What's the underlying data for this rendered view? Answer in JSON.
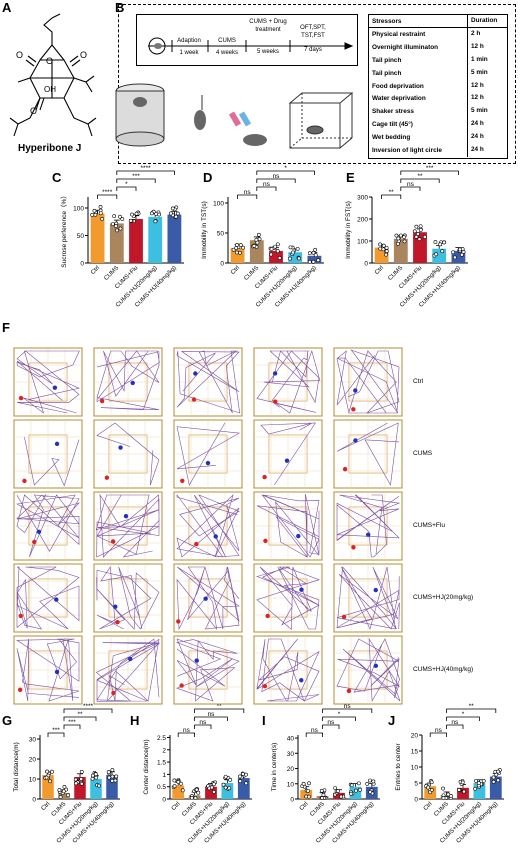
{
  "panel_labels": {
    "A": "A",
    "B": "B",
    "C": "C",
    "D": "D",
    "E": "E",
    "F": "F",
    "G": "G",
    "H": "H",
    "I": "I",
    "J": "J"
  },
  "compound_name": "Hyperibone J",
  "timeline": {
    "stages": [
      {
        "label": "Adaption",
        "duration": "1 week"
      },
      {
        "label": "CUMS",
        "duration": "4 weeks"
      },
      {
        "label": "CUMS + Drug treatment",
        "duration": "5 weeks"
      },
      {
        "label": "OFT,SPT, TST,FST",
        "duration": "7 days"
      }
    ]
  },
  "stressor_table": {
    "headers": [
      "Stressors",
      "Duration"
    ],
    "rows": [
      [
        "Physical restraint",
        "2 h"
      ],
      [
        "Overnight illuminaton",
        "12 h"
      ],
      [
        "Tail pinch",
        "1 min"
      ],
      [
        "Tail pinch",
        "5 min"
      ],
      [
        "Food deprivation",
        "12 h"
      ],
      [
        "Water deprivation",
        "12 h"
      ],
      [
        "Shaker stress",
        "5 min"
      ],
      [
        "Cage tilt (45°)",
        "24 h"
      ],
      [
        "Wet bedding",
        "24 h"
      ],
      [
        "Inversion of light circle",
        "24 h"
      ]
    ]
  },
  "groups": [
    "Ctrl",
    "CUMS",
    "CUMS+Flu",
    "CUMS+HJ(20mg/kg)",
    "CUMS+HJ(40mg/kg)"
  ],
  "colors": {
    "Ctrl": "#f39a2e",
    "CUMS": "#a9865d",
    "CUMS+Flu": "#c0182a",
    "CUMS+HJ(20mg/kg)": "#3cbfe0",
    "CUMS+HJ(40mg/kg)": "#3a5ca8"
  },
  "chart_data": [
    {
      "panel": "C",
      "type": "bar",
      "ylabel": "Sucrose perference（%）",
      "yticks": [
        0,
        50,
        100
      ],
      "ylim": [
        0,
        120
      ],
      "categories": [
        "Ctrl",
        "CUMS",
        "CUMS+Flu",
        "CUMS+HJ(20mg/kg)",
        "CUMS+HJ(40mg/kg)"
      ],
      "values": [
        90,
        72,
        80,
        84,
        88
      ],
      "brackets": [
        {
          "from": 0,
          "to": 1,
          "label": "****"
        },
        {
          "from": 1,
          "to": 2,
          "label": "*"
        },
        {
          "from": 1,
          "to": 3,
          "label": "***"
        },
        {
          "from": 1,
          "to": 4,
          "label": "****"
        }
      ]
    },
    {
      "panel": "D",
      "type": "bar",
      "ylabel": "Immobility in TST(s)",
      "yticks": [
        0,
        50,
        100
      ],
      "ylim": [
        0,
        110
      ],
      "categories": [
        "Ctrl",
        "CUMS",
        "CUMS+Flu",
        "CUMS+HJ(20mg/kg)",
        "CUMS+HJ(40mg/kg)"
      ],
      "values": [
        25,
        38,
        20,
        18,
        12
      ],
      "brackets": [
        {
          "from": 0,
          "to": 1,
          "label": "ns"
        },
        {
          "from": 1,
          "to": 2,
          "label": "ns"
        },
        {
          "from": 1,
          "to": 3,
          "label": "ns"
        },
        {
          "from": 1,
          "to": 4,
          "label": "*"
        }
      ]
    },
    {
      "panel": "E",
      "type": "bar",
      "ylabel": "Immobility in FST(s)",
      "yticks": [
        0,
        100,
        200,
        300
      ],
      "ylim": [
        0,
        300
      ],
      "categories": [
        "Ctrl",
        "CUMS",
        "CUMS+Flu",
        "CUMS+HJ(20mg/kg)",
        "CUMS+HJ(40mg/kg)"
      ],
      "values": [
        70,
        110,
        140,
        65,
        55
      ],
      "brackets": [
        {
          "from": 0,
          "to": 1,
          "label": "**"
        },
        {
          "from": 1,
          "to": 2,
          "label": "ns"
        },
        {
          "from": 1,
          "to": 3,
          "label": "**"
        },
        {
          "from": 1,
          "to": 4,
          "label": "***"
        }
      ]
    },
    {
      "panel": "G",
      "type": "bar",
      "ylabel": "Total distance(m)",
      "yticks": [
        0,
        10,
        20,
        30
      ],
      "ylim": [
        0,
        32
      ],
      "categories": [
        "Ctrl",
        "CUMS",
        "CUMS+Flu",
        "CUMS+HJ(20mg/kg)",
        "CUMS+HJ(40mg/kg)"
      ],
      "values": [
        12,
        3,
        11,
        10,
        12
      ],
      "brackets": [
        {
          "from": 0,
          "to": 1,
          "label": "***"
        },
        {
          "from": 1,
          "to": 2,
          "label": "***"
        },
        {
          "from": 1,
          "to": 3,
          "label": "**"
        },
        {
          "from": 1,
          "to": 4,
          "label": "****"
        }
      ]
    },
    {
      "panel": "H",
      "type": "bar",
      "ylabel": "Center distance(m)",
      "yticks": [
        0.0,
        0.5,
        1.0,
        1.5,
        2.0,
        2.5
      ],
      "ylim": [
        0,
        2.6
      ],
      "categories": [
        "Ctrl",
        "CUMS",
        "CUMS+Flu",
        "CUMS+HJ(20mg/kg)",
        "CUMS+HJ(40mg/kg)"
      ],
      "values": [
        0.55,
        0.15,
        0.5,
        0.65,
        0.85
      ],
      "brackets": [
        {
          "from": 0,
          "to": 1,
          "label": "ns"
        },
        {
          "from": 1,
          "to": 2,
          "label": "ns"
        },
        {
          "from": 1,
          "to": 3,
          "label": "ns"
        },
        {
          "from": 1,
          "to": 4,
          "label": "**"
        }
      ]
    },
    {
      "panel": "I",
      "type": "bar",
      "ylabel": "Time  in center(s)",
      "yticks": [
        0,
        10,
        20,
        30,
        40
      ],
      "ylim": [
        0,
        42
      ],
      "categories": [
        "Ctrl",
        "CUMS",
        "CUMS+Flu",
        "CUMS+HJ(20mg/kg)",
        "CUMS+HJ(40mg/kg)"
      ],
      "values": [
        6,
        2,
        4,
        8,
        8
      ],
      "brackets": [
        {
          "from": 0,
          "to": 1,
          "label": "ns"
        },
        {
          "from": 1,
          "to": 2,
          "label": "ns"
        },
        {
          "from": 1,
          "to": 3,
          "label": "*"
        },
        {
          "from": 1,
          "to": 4,
          "label": "ns"
        }
      ]
    },
    {
      "panel": "J",
      "type": "bar",
      "ylabel": "Entries to center",
      "yticks": [
        0,
        5,
        10,
        15,
        20
      ],
      "ylim": [
        0,
        20
      ],
      "categories": [
        "Ctrl",
        "CUMS",
        "CUMS+Flu",
        "CUMS+HJ(20mg/kg)",
        "CUMS+HJ(40mg/kg)"
      ],
      "values": [
        4,
        1.2,
        3.5,
        5,
        7
      ],
      "brackets": [
        {
          "from": 0,
          "to": 1,
          "label": "ns"
        },
        {
          "from": 1,
          "to": 2,
          "label": "ns"
        },
        {
          "from": 1,
          "to": 3,
          "label": "*"
        },
        {
          "from": 1,
          "to": 4,
          "label": "**"
        }
      ]
    }
  ],
  "oft_rows": [
    "Ctrl",
    "CUMS",
    "CUMS+Flu",
    "CUMS+HJ(20mg/kg)",
    "CUMS+HJ(40mg/kg)"
  ]
}
